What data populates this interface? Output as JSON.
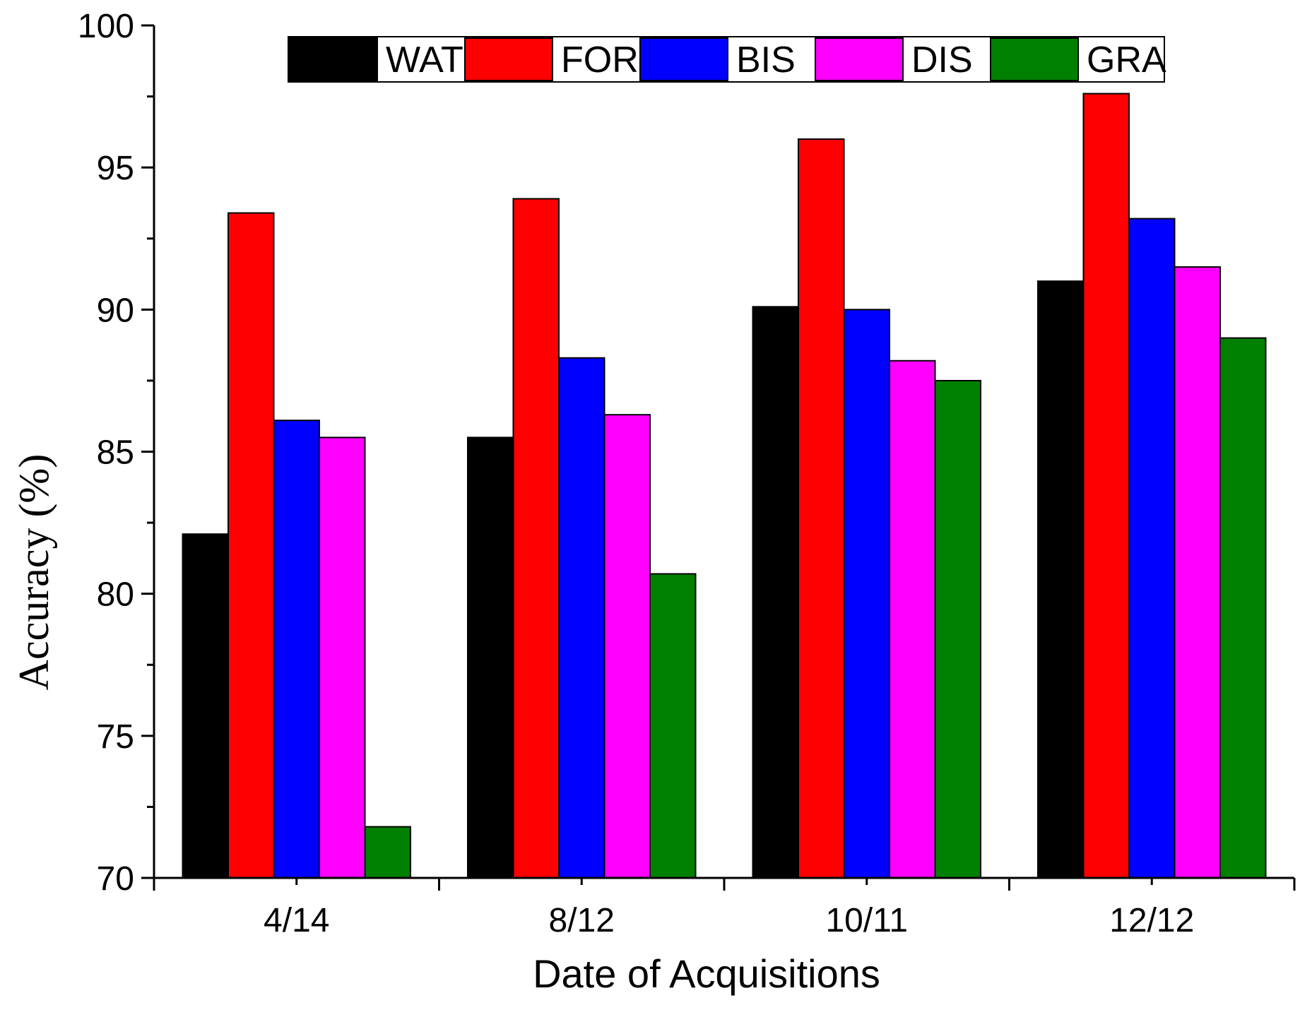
{
  "chart_data": {
    "type": "bar",
    "categories": [
      "4/14",
      "8/12",
      "10/11",
      "12/12"
    ],
    "series": [
      {
        "name": "WAT",
        "color": "#000000",
        "values": [
          82.1,
          85.5,
          90.1,
          91.0
        ]
      },
      {
        "name": "FOR",
        "color": "#ff0000",
        "values": [
          93.4,
          93.9,
          96.0,
          97.6
        ]
      },
      {
        "name": "BIS",
        "color": "#0000ff",
        "values": [
          86.1,
          88.3,
          90.0,
          93.2
        ]
      },
      {
        "name": "DIS",
        "color": "#ff00ff",
        "values": [
          85.5,
          86.3,
          88.2,
          91.5
        ]
      },
      {
        "name": "GRA",
        "color": "#008000",
        "values": [
          71.8,
          80.7,
          87.5,
          89.0
        ]
      }
    ],
    "xlabel": "Date of Acquisitions",
    "ylabel": "Accuracy (%)",
    "ylim": [
      70,
      100
    ],
    "yticks": [
      70,
      75,
      80,
      85,
      90,
      95,
      100
    ],
    "legend_position": "top",
    "grid": false
  }
}
